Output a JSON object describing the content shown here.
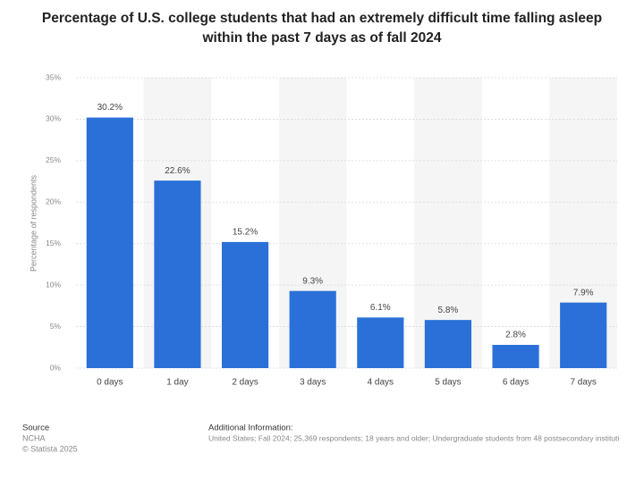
{
  "chart_data": {
    "type": "bar",
    "title": "Percentage of U.S. college students that had an extremely difficult time falling asleep within the past 7 days as of fall 2024",
    "y_label": "Percentage of respondents",
    "categories": [
      "0 days",
      "1 day",
      "2 days",
      "3 days",
      "4 days",
      "5 days",
      "6 days",
      "7 days"
    ],
    "values": [
      30.2,
      22.6,
      15.2,
      9.3,
      6.1,
      5.8,
      2.8,
      7.9
    ],
    "value_labels": [
      "30.2%",
      "22.6%",
      "15.2%",
      "9.3%",
      "6.1%",
      "5.8%",
      "2.8%",
      "7.9%"
    ],
    "color": "#2a70d8",
    "ylim": [
      0,
      35
    ],
    "yticks": [
      {
        "value": 0,
        "label": "0%"
      },
      {
        "value": 5,
        "label": "5%"
      },
      {
        "value": 10,
        "label": "10%"
      },
      {
        "value": 15,
        "label": "15%"
      },
      {
        "value": 20,
        "label": "20%"
      },
      {
        "value": 25,
        "label": "25%"
      },
      {
        "value": 30,
        "label": "30%"
      },
      {
        "value": 35,
        "label": "35%"
      }
    ],
    "grid": true,
    "source_heading": "Source",
    "source_lines": [
      "NCHA",
      "© Statista 2025"
    ],
    "info_heading": "Additional Information:",
    "info_text": "United States; Fall 2024; 25,369 respondents; 18 years and older; Undergraduate students from 48 postsecondary instituti"
  }
}
